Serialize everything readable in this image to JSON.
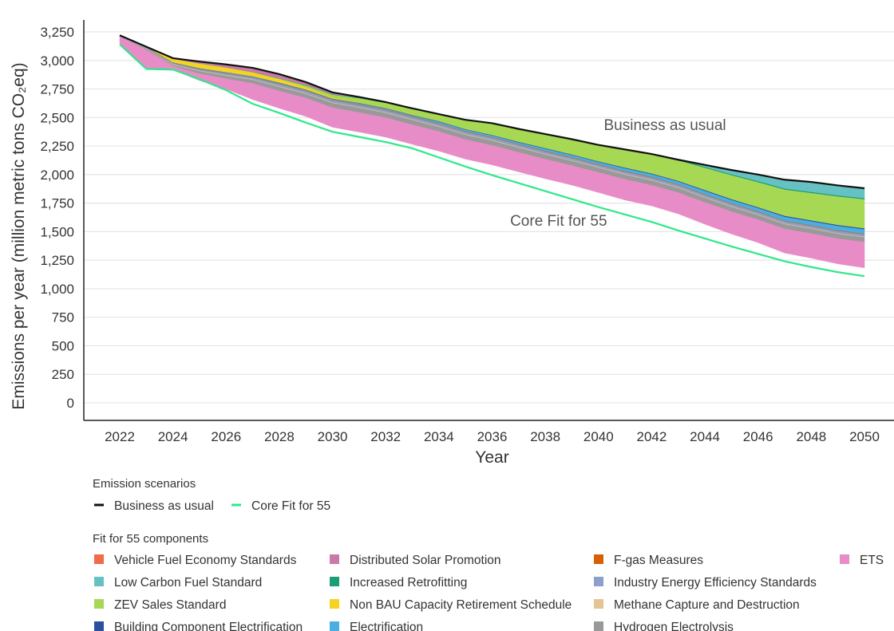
{
  "chart_data": {
    "type": "area",
    "title": "",
    "xlabel": "Year",
    "ylabel": "Emissions per year (million metric tons CO₂eq)",
    "xlim": [
      2022,
      2050
    ],
    "ylim": [
      0,
      3250
    ],
    "x_ticks": [
      2022,
      2024,
      2026,
      2028,
      2030,
      2032,
      2034,
      2036,
      2038,
      2040,
      2042,
      2044,
      2046,
      2048,
      2050
    ],
    "x_tick_labels": [
      "2022",
      "2024",
      "2026",
      "2028",
      "2030",
      "2032",
      "2034",
      "2036",
      "2038",
      "2040",
      "2042",
      "2044",
      "2046",
      "2048",
      "2050"
    ],
    "y_ticks": [
      0,
      250,
      500,
      750,
      1000,
      1250,
      1500,
      1750,
      2000,
      2250,
      2500,
      2750,
      3000,
      3250
    ],
    "y_tick_labels": [
      "0",
      "250",
      "500",
      "750",
      "1,000",
      "1,250",
      "1,500",
      "1,750",
      "2,000",
      "2,250",
      "2,500",
      "2,750",
      "3,000",
      "3,250"
    ],
    "grid": "horizontal",
    "x": [
      2022,
      2023,
      2024,
      2025,
      2026,
      2027,
      2028,
      2029,
      2030,
      2031,
      2032,
      2033,
      2034,
      2035,
      2036,
      2037,
      2038,
      2039,
      2040,
      2041,
      2042,
      2043,
      2044,
      2045,
      2046,
      2047,
      2048,
      2049,
      2050
    ],
    "lines": [
      {
        "name": "Business as usual",
        "color": "#111111",
        "values": [
          3220,
          3120,
          3020,
          2990,
          2965,
          2935,
          2880,
          2810,
          2720,
          2680,
          2635,
          2580,
          2530,
          2480,
          2450,
          2400,
          2355,
          2310,
          2260,
          2220,
          2180,
          2130,
          2085,
          2040,
          2000,
          1955,
          1935,
          1905,
          1880
        ]
      },
      {
        "name": "Core Fit for 55",
        "color": "#2ee88a",
        "values": [
          3140,
          2925,
          2920,
          2835,
          2740,
          2620,
          2540,
          2455,
          2375,
          2330,
          2285,
          2230,
          2150,
          2070,
          1995,
          1925,
          1855,
          1785,
          1715,
          1650,
          1585,
          1510,
          1440,
          1370,
          1305,
          1240,
          1190,
          1145,
          1110
        ]
      }
    ],
    "stack_order": [
      "ETS",
      "Hydrogen Electrolysis",
      "Methane Capture and Destruction",
      "Industry Energy Efficiency Standards",
      "F-gas Measures",
      "Electrification",
      "Building Component Electrification",
      "Non BAU Capacity Retirement Schedule",
      "ZEV Sales Standard",
      "Increased Retrofitting",
      "Low Carbon Fuel Standard",
      "Distributed Solar Promotion",
      "Vehicle Fuel Economy Standards"
    ],
    "series": [
      {
        "name": "ETS",
        "color": "#e88cc8",
        "values": [
          60,
          160,
          30,
          60,
          90,
          140,
          150,
          160,
          170,
          170,
          170,
          170,
          170,
          170,
          170,
          170,
          170,
          170,
          175,
          180,
          180,
          185,
          190,
          195,
          200,
          210,
          215,
          220,
          225
        ]
      },
      {
        "name": "Hydrogen Electrolysis",
        "color": "#999999",
        "values": [
          5,
          10,
          10,
          20,
          25,
          30,
          35,
          35,
          40,
          40,
          40,
          40,
          40,
          40,
          40,
          40,
          40,
          40,
          40,
          40,
          40,
          40,
          40,
          40,
          40,
          40,
          40,
          40,
          40
        ]
      },
      {
        "name": "Methane Capture and Destruction",
        "color": "#e5c494",
        "values": [
          2,
          3,
          5,
          5,
          5,
          5,
          5,
          5,
          5,
          5,
          5,
          5,
          5,
          5,
          5,
          5,
          5,
          5,
          5,
          5,
          5,
          5,
          5,
          5,
          5,
          5,
          5,
          5,
          5
        ]
      },
      {
        "name": "Industry Energy Efficiency Standards",
        "color": "#8da0cb",
        "values": [
          3,
          5,
          10,
          10,
          15,
          15,
          20,
          20,
          20,
          20,
          20,
          20,
          20,
          20,
          20,
          20,
          20,
          20,
          20,
          20,
          20,
          20,
          20,
          20,
          20,
          20,
          20,
          20,
          20
        ]
      },
      {
        "name": "F-gas Measures",
        "color": "#d95f02",
        "values": [
          1,
          2,
          2,
          3,
          3,
          3,
          4,
          4,
          4,
          5,
          5,
          5,
          5,
          5,
          5,
          5,
          5,
          5,
          5,
          5,
          5,
          5,
          5,
          5,
          5,
          5,
          5,
          5,
          5
        ]
      },
      {
        "name": "Electrification",
        "color": "#4aaee0",
        "values": [
          1,
          2,
          3,
          5,
          5,
          5,
          5,
          5,
          5,
          10,
          10,
          10,
          15,
          15,
          15,
          15,
          20,
          20,
          20,
          25,
          25,
          25,
          30,
          30,
          30,
          35,
          35,
          40,
          40
        ]
      },
      {
        "name": "Building Component Electrification",
        "color": "#2c4f9e",
        "values": [
          0,
          1,
          1,
          2,
          2,
          2,
          3,
          3,
          3,
          3,
          3,
          4,
          4,
          4,
          4,
          5,
          5,
          5,
          5,
          6,
          6,
          6,
          7,
          7,
          7,
          8,
          8,
          8,
          8
        ]
      },
      {
        "name": "Non BAU Capacity Retirement Schedule",
        "color": "#f5d323",
        "values": [
          0,
          5,
          30,
          40,
          40,
          35,
          30,
          20,
          10,
          5,
          5,
          5,
          0,
          0,
          0,
          0,
          0,
          0,
          0,
          0,
          0,
          0,
          0,
          0,
          0,
          0,
          0,
          0,
          0
        ]
      },
      {
        "name": "ZEV Sales Standard",
        "color": "#a6d854",
        "values": [
          0,
          0,
          0,
          0,
          0,
          0,
          5,
          15,
          25,
          35,
          40,
          50,
          60,
          80,
          100,
          110,
          120,
          130,
          140,
          155,
          165,
          180,
          195,
          210,
          220,
          230,
          240,
          250,
          255
        ]
      },
      {
        "name": "Increased Retrofitting",
        "color": "#1b9e77",
        "values": [
          0,
          0,
          0,
          1,
          1,
          2,
          2,
          3,
          3,
          4,
          4,
          5,
          5,
          5,
          6,
          6,
          6,
          7,
          7,
          7,
          8,
          8,
          8,
          8,
          9,
          9,
          9,
          9,
          9
        ]
      },
      {
        "name": "Low Carbon Fuel Standard",
        "color": "#66c2c2",
        "values": [
          0,
          0,
          0,
          0,
          0,
          0,
          0,
          0,
          0,
          0,
          0,
          0,
          0,
          0,
          0,
          0,
          0,
          0,
          0,
          0,
          0,
          0,
          20,
          40,
          60,
          80,
          90,
          90,
          90
        ]
      },
      {
        "name": "Distributed Solar Promotion",
        "color": "#c97aa8",
        "values": [
          0,
          0,
          10,
          20,
          30,
          40,
          40,
          30,
          20,
          10,
          5,
          0,
          0,
          0,
          0,
          0,
          0,
          0,
          0,
          0,
          0,
          0,
          0,
          0,
          0,
          0,
          0,
          0,
          0
        ]
      },
      {
        "name": "Vehicle Fuel Economy Standards",
        "color": "#f06b4a",
        "values": [
          0,
          0,
          0,
          0,
          0,
          0,
          0,
          0,
          0,
          0,
          0,
          0,
          0,
          0,
          0,
          0,
          0,
          0,
          0,
          0,
          0,
          0,
          0,
          0,
          0,
          0,
          0,
          0,
          0
        ]
      }
    ],
    "annotations": [
      {
        "text": "Business as usual",
        "x": 2042.5,
        "y": 2390
      },
      {
        "text": "Core Fit for 55",
        "x": 2038.5,
        "y": 1550
      }
    ]
  },
  "legend": {
    "scenarios_title": "Emission scenarios",
    "scenarios": [
      {
        "label": "Business as usual",
        "color": "#111111"
      },
      {
        "label": "Core Fit for 55",
        "color": "#2ee88a"
      }
    ],
    "components_title": "Fit for 55 components",
    "components": [
      {
        "label": "Vehicle Fuel Economy Standards",
        "color": "#f06b4a"
      },
      {
        "label": "Distributed Solar Promotion",
        "color": "#c97aa8"
      },
      {
        "label": "F-gas Measures",
        "color": "#d95f02"
      },
      {
        "label": "ETS",
        "color": "#e88cc8"
      },
      {
        "label": "Low Carbon Fuel Standard",
        "color": "#66c2c2"
      },
      {
        "label": "Increased Retrofitting",
        "color": "#1b9e77"
      },
      {
        "label": "Industry Energy Efficiency Standards",
        "color": "#8da0cb"
      },
      {
        "label": "ZEV Sales Standard",
        "color": "#a6d854"
      },
      {
        "label": "Non BAU Capacity Retirement Schedule",
        "color": "#f5d323"
      },
      {
        "label": "Methane Capture and Destruction",
        "color": "#e5c494"
      },
      {
        "label": "Building Component Electrification",
        "color": "#2c4f9e"
      },
      {
        "label": "Electrification",
        "color": "#4aaee0"
      },
      {
        "label": "Hydrogen Electrolysis",
        "color": "#999999"
      }
    ]
  }
}
